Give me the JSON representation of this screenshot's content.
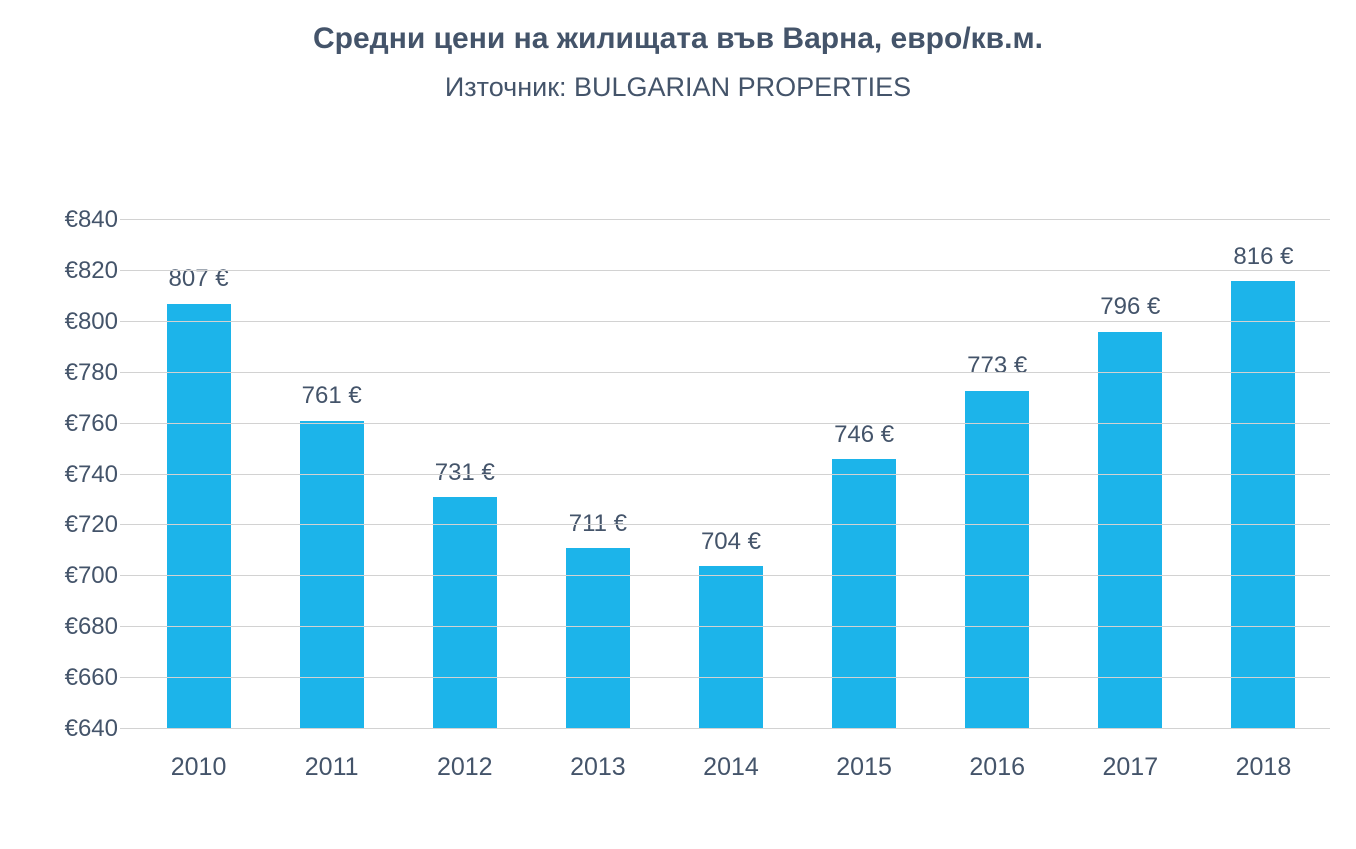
{
  "title": "Средни цени на жилищата във Варна, евро/кв.м.",
  "subtitle": "Източник: BULGARIAN PROPERTIES",
  "chart_data": {
    "type": "bar",
    "title": "Средни цени на жилищата във Варна, евро/кв.м.",
    "subtitle": "Източник: BULGARIAN PROPERTIES",
    "categories": [
      "2010",
      "2011",
      "2012",
      "2013",
      "2014",
      "2015",
      "2016",
      "2017",
      "2018"
    ],
    "values": [
      807,
      761,
      731,
      711,
      704,
      746,
      773,
      796,
      816
    ],
    "data_labels": [
      "807 €",
      "761 €",
      "731 €",
      "711 €",
      "704 €",
      "746 €",
      "773 €",
      "796 €",
      "816 €"
    ],
    "xlabel": "",
    "ylabel": "",
    "ylim": [
      640,
      840
    ],
    "y_ticks": [
      640,
      660,
      680,
      700,
      720,
      740,
      760,
      780,
      800,
      820,
      840
    ],
    "y_tick_labels": [
      "€640",
      "€660",
      "€680",
      "€700",
      "€720",
      "€740",
      "€760",
      "€780",
      "€800",
      "€820",
      "€840"
    ],
    "grid": true,
    "legend": "none",
    "bar_color": "#1CB4EA",
    "text_color": "#44546A",
    "gridline_color": "#D2D2D2"
  }
}
